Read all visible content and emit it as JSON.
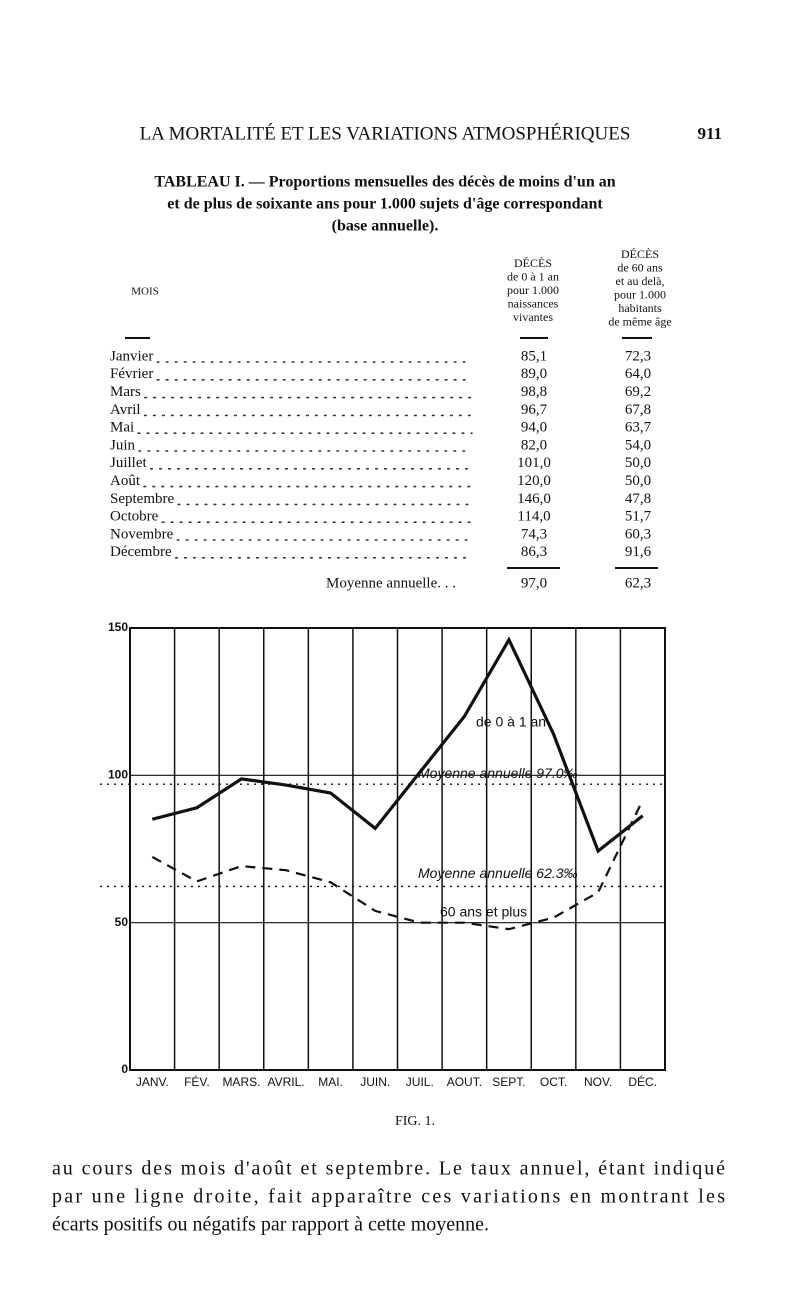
{
  "header": {
    "title": "LA MORTALITÉ ET LES VARIATIONS ATMOSPHÉRIQUES",
    "page": "911"
  },
  "table": {
    "caption": [
      "TABLEAU I. — Proportions mensuelles des décès de moins d'un an",
      "et de plus de soixante ans pour 1.000 sujets d'âge correspondant",
      "(base annuelle)."
    ],
    "columns": [
      [
        "MOIS"
      ],
      [
        "DÉCÈS",
        "de 0 à 1 an",
        "pour 1.000",
        "naissances",
        "vivantes"
      ],
      [
        "DÉCÈS",
        "de 60 ans",
        "et au delà,",
        "pour 1.000",
        "habitants",
        "de même âge"
      ]
    ],
    "rows": [
      [
        "Janvier",
        "85,1",
        "72,3"
      ],
      [
        "Février",
        "89,0",
        "64,0"
      ],
      [
        "Mars",
        "98,8",
        "69,2"
      ],
      [
        "Avril",
        "96,7",
        "67,8"
      ],
      [
        "Mai",
        "94,0",
        "63,7"
      ],
      [
        "Juin",
        "82,0",
        "54,0"
      ],
      [
        "Juillet",
        "101,0",
        "50,0"
      ],
      [
        "Août",
        "120,0",
        "50,0"
      ],
      [
        "Septembre",
        "146,0",
        "47,8"
      ],
      [
        "Octobre",
        "114,0",
        "51,7"
      ],
      [
        "Novembre",
        "74,3",
        "60,3"
      ],
      [
        "Décembre",
        "86,3",
        "91,6"
      ]
    ],
    "footer": [
      "Moyenne annuelle. . .",
      "97,0",
      "62,3"
    ]
  },
  "chart_data": {
    "type": "line",
    "categories": [
      "JANV.",
      "FÉV.",
      "MARS.",
      "AVRIL.",
      "MAI.",
      "JUIN.",
      "JUIL.",
      "AOUT.",
      "SEPT.",
      "OCT.",
      "NOV.",
      "DÉC."
    ],
    "series": [
      {
        "name": "de 0 à 1 an",
        "color": "#111111",
        "dash": false,
        "values": [
          85.1,
          89,
          98.8,
          96.7,
          94,
          82,
          101,
          120,
          146,
          114,
          74.3,
          86.3
        ]
      },
      {
        "name": "60 ans et plus",
        "color": "#111111",
        "dash": true,
        "values": [
          72.3,
          64,
          69.2,
          67.8,
          63.7,
          54,
          50,
          50,
          47.8,
          51.7,
          60.3,
          91.6
        ]
      }
    ],
    "reference_lines": [
      {
        "value": 97,
        "label": "Moyenne annuelle 97.0‰"
      },
      {
        "value": 62.3,
        "label": "Moyenne annuelle 62.3‰"
      }
    ],
    "ylim": [
      0,
      150
    ],
    "yticks": [
      0,
      50,
      100,
      150
    ],
    "grid": true
  },
  "figure_caption": "FIG. 1.",
  "body": [
    "au cours des mois d'août et septembre. Le taux annuel, étant indiqué",
    "par une ligne droite, fait apparaître ces variations en montrant les",
    "écarts positifs ou négatifs par rapport à cette moyenne."
  ]
}
